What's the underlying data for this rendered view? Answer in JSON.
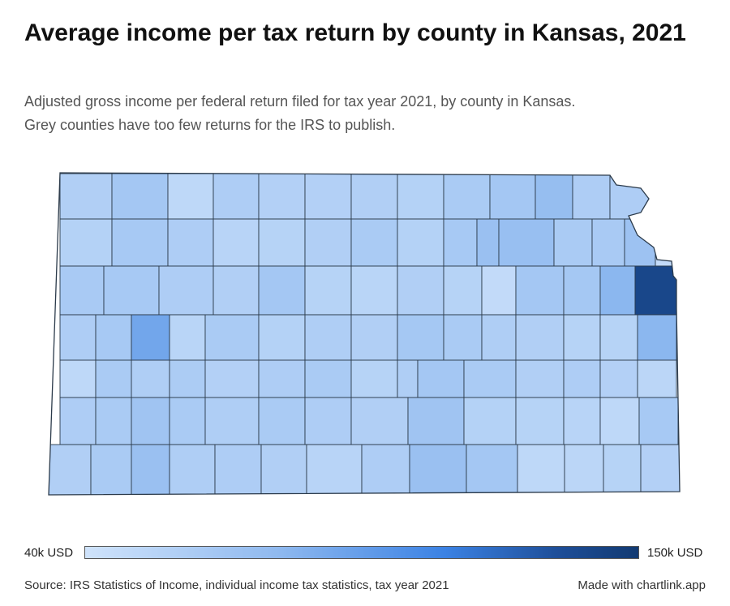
{
  "title": "Average income per tax return by county in Kansas, 2021",
  "subtitle_line1": "Adjusted gross income per federal return filed for tax year 2021, by county in Kansas.",
  "subtitle_line2": "Grey counties have too few returns for the IRS to publish.",
  "legend": {
    "min_label": "40k USD",
    "max_label": "150k USD",
    "min_value": 40,
    "max_value": 150,
    "unit": "k USD",
    "colors": [
      "#cfe3fb",
      "#8fb9ef",
      "#3b82e4",
      "#1e4f9a",
      "#123a72"
    ]
  },
  "source": "Source: IRS Statistics of Income, individual income tax statistics, tax year 2021",
  "credit": "Made with chartlink.app",
  "map_style": {
    "stroke": "#2b3a4a",
    "no_data_color": "#d9d9d9"
  },
  "chart_data": {
    "type": "choropleth",
    "region": "Kansas",
    "unit": "k USD",
    "counties": [
      {
        "value": 58
      },
      {
        "value": 66
      },
      {
        "value": 50
      },
      {
        "value": 60
      },
      {
        "value": 57
      },
      {
        "value": 57
      },
      {
        "value": 58
      },
      {
        "value": 56
      },
      {
        "value": 62
      },
      {
        "value": 66
      },
      {
        "value": 74
      },
      {
        "value": 60
      },
      {
        "value": 60
      },
      {
        "value": 56
      },
      {
        "value": 64
      },
      {
        "value": 60
      },
      {
        "value": 54
      },
      {
        "value": 55
      },
      {
        "value": 58
      },
      {
        "value": 62
      },
      {
        "value": 56
      },
      {
        "value": 64
      },
      {
        "value": 72
      },
      {
        "value": 73
      },
      {
        "value": 62
      },
      {
        "value": 63
      },
      {
        "value": 70
      },
      {
        "value": 47
      },
      {
        "value": 63
      },
      {
        "value": 64
      },
      {
        "value": 60
      },
      {
        "value": 58
      },
      {
        "value": 66
      },
      {
        "value": 55
      },
      {
        "value": 53
      },
      {
        "value": 58
      },
      {
        "value": 55
      },
      {
        "value": 48
      },
      {
        "value": 66
      },
      {
        "value": 65
      },
      {
        "value": 80
      },
      {
        "value": 140
      },
      {
        "value": 60
      },
      {
        "value": 64
      },
      {
        "value": 90
      },
      {
        "value": 53
      },
      {
        "value": 62
      },
      {
        "value": 56
      },
      {
        "value": 59
      },
      {
        "value": 58
      },
      {
        "value": 65
      },
      {
        "value": 62
      },
      {
        "value": 59
      },
      {
        "value": 58
      },
      {
        "value": 55
      },
      {
        "value": 55
      },
      {
        "value": 80
      },
      {
        "value": 50
      },
      {
        "value": 62
      },
      {
        "value": 59
      },
      {
        "value": 61
      },
      {
        "value": 57
      },
      {
        "value": 60
      },
      {
        "value": 62
      },
      {
        "value": 55
      },
      {
        "value": 59
      },
      {
        "value": 66
      },
      {
        "value": 62
      },
      {
        "value": 58
      },
      {
        "value": 60
      },
      {
        "value": 57
      },
      {
        "value": 52
      },
      {
        "value": 60
      },
      {
        "value": 62
      },
      {
        "value": 68
      },
      {
        "value": 62
      },
      {
        "value": 59
      },
      {
        "value": 62
      },
      {
        "value": 60
      },
      {
        "value": 58
      },
      {
        "value": 68
      },
      {
        "value": 56
      },
      {
        "value": 55
      },
      {
        "value": 54
      },
      {
        "value": 50
      },
      {
        "value": 64
      },
      {
        "value": 58
      },
      {
        "value": 62
      },
      {
        "value": 72
      },
      {
        "value": 59
      },
      {
        "value": 60
      },
      {
        "value": 58
      },
      {
        "value": 54
      },
      {
        "value": 60
      },
      {
        "value": 72
      },
      {
        "value": 66
      },
      {
        "value": 50
      },
      {
        "value": 52
      },
      {
        "value": 55
      },
      {
        "value": 57
      },
      {
        "value": 60
      },
      {
        "value": 62
      },
      {
        "value": 56
      },
      {
        "value": 76
      },
      {
        "value": 60
      },
      {
        "value": 52
      },
      {
        "value": 54
      },
      {
        "value": 57
      },
      {
        "value": 57
      },
      {
        "value": 60
      },
      {
        "value": 58
      },
      {
        "value": 54
      },
      {
        "value": 56
      },
      {
        "value": 54
      },
      {
        "value": 58
      }
    ]
  }
}
